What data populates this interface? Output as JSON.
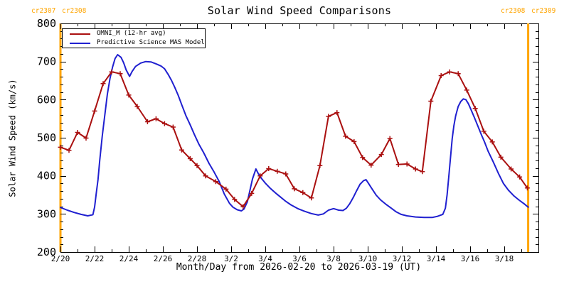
{
  "title": "Solar Wind Speed Comparisons",
  "colors": {
    "omni_red": "#aa1010",
    "model_blue": "#2020d0",
    "carrington_orange": "#ffa500",
    "axis": "#000000",
    "background": "#ffffff"
  },
  "carrington": {
    "boundaries": [
      {
        "day": 0.0,
        "left_label": "cr2307",
        "right_label": "cr2308"
      },
      {
        "day": 27.4,
        "left_label": "cr2308",
        "right_label": "cr2309"
      }
    ]
  },
  "legend": {
    "items": [
      {
        "label": "OMNI_M (12-hr avg)"
      },
      {
        "label": "Predictive Science MAS Model"
      }
    ]
  },
  "chart_data": {
    "type": "line",
    "title": "Solar Wind Speed Comparisons",
    "xlabel": "Month/Day from 2026-02-20 to 2026-03-19 (UT)",
    "ylabel": "Solar Wind Speed (km/s)",
    "x_unit": "days since 2026-02-20 00:00 UT",
    "x_range_days": [
      0,
      28
    ],
    "ylim": [
      200,
      800
    ],
    "y_ticks": [
      200,
      300,
      400,
      500,
      600,
      700,
      800
    ],
    "y_major_step": 100,
    "y_minor_step": 20,
    "x_major_step_days": 2,
    "x_minor_step_days": 1,
    "x_tick_days": [
      0,
      2,
      4,
      6,
      8,
      10,
      12,
      14,
      16,
      18,
      20,
      22,
      24,
      26
    ],
    "x_tick_labels": [
      "2/20",
      "2/22",
      "2/24",
      "2/26",
      "2/28",
      "3/2",
      "3/4",
      "3/6",
      "3/8",
      "3/10",
      "3/12",
      "3/14",
      "3/16",
      "3/18"
    ],
    "grid": false,
    "legend_position": "top-left",
    "series": [
      {
        "name": "OMNI_M (12-hr avg)",
        "color": "#aa1010",
        "marker": "plus",
        "points": [
          [
            0.0,
            475
          ],
          [
            0.5,
            467
          ],
          [
            1.0,
            514
          ],
          [
            1.5,
            499
          ],
          [
            2.0,
            570
          ],
          [
            2.5,
            642
          ],
          [
            3.0,
            673
          ],
          [
            3.5,
            668
          ],
          [
            4.0,
            612
          ],
          [
            4.5,
            582
          ],
          [
            5.1,
            542
          ],
          [
            5.6,
            550
          ],
          [
            6.1,
            537
          ],
          [
            6.6,
            528
          ],
          [
            7.1,
            468
          ],
          [
            7.6,
            445
          ],
          [
            8.0,
            427
          ],
          [
            8.5,
            400
          ],
          [
            9.1,
            385
          ],
          [
            9.7,
            365
          ],
          [
            10.2,
            338
          ],
          [
            10.7,
            319
          ],
          [
            11.2,
            354
          ],
          [
            11.7,
            400
          ],
          [
            12.2,
            419
          ],
          [
            12.7,
            412
          ],
          [
            13.2,
            405
          ],
          [
            13.7,
            366
          ],
          [
            14.2,
            356
          ],
          [
            14.7,
            342
          ],
          [
            15.2,
            427
          ],
          [
            15.7,
            556
          ],
          [
            16.2,
            566
          ],
          [
            16.7,
            504
          ],
          [
            17.2,
            490
          ],
          [
            17.7,
            448
          ],
          [
            18.2,
            428
          ],
          [
            18.8,
            456
          ],
          [
            19.3,
            498
          ],
          [
            19.8,
            430
          ],
          [
            20.3,
            431
          ],
          [
            20.8,
            418
          ],
          [
            21.2,
            411
          ],
          [
            21.7,
            596
          ],
          [
            22.3,
            663
          ],
          [
            22.8,
            673
          ],
          [
            23.3,
            668
          ],
          [
            23.8,
            625
          ],
          [
            24.3,
            577
          ],
          [
            24.8,
            517
          ],
          [
            25.3,
            489
          ],
          [
            25.8,
            449
          ],
          [
            26.4,
            418
          ],
          [
            26.9,
            397
          ],
          [
            27.35,
            368
          ]
        ]
      },
      {
        "name": "Predictive Science MAS Model",
        "color": "#2020d0",
        "marker": "none",
        "points": [
          [
            0.0,
            317
          ],
          [
            0.4,
            310
          ],
          [
            0.8,
            304
          ],
          [
            1.2,
            299
          ],
          [
            1.6,
            295
          ],
          [
            1.9,
            298
          ],
          [
            2.0,
            318
          ],
          [
            2.1,
            355
          ],
          [
            2.2,
            390
          ],
          [
            2.3,
            440
          ],
          [
            2.45,
            505
          ],
          [
            2.6,
            560
          ],
          [
            2.75,
            615
          ],
          [
            2.9,
            655
          ],
          [
            3.05,
            685
          ],
          [
            3.2,
            708
          ],
          [
            3.35,
            718
          ],
          [
            3.55,
            711
          ],
          [
            3.7,
            697
          ],
          [
            3.85,
            678
          ],
          [
            4.05,
            661
          ],
          [
            4.2,
            674
          ],
          [
            4.4,
            687
          ],
          [
            4.7,
            696
          ],
          [
            5.0,
            700
          ],
          [
            5.3,
            699
          ],
          [
            5.6,
            694
          ],
          [
            5.9,
            688
          ],
          [
            6.1,
            681
          ],
          [
            6.3,
            667
          ],
          [
            6.5,
            651
          ],
          [
            6.7,
            632
          ],
          [
            6.9,
            611
          ],
          [
            7.1,
            587
          ],
          [
            7.35,
            558
          ],
          [
            7.6,
            534
          ],
          [
            7.85,
            508
          ],
          [
            8.1,
            484
          ],
          [
            8.4,
            460
          ],
          [
            8.7,
            433
          ],
          [
            9.0,
            410
          ],
          [
            9.3,
            385
          ],
          [
            9.6,
            352
          ],
          [
            9.9,
            328
          ],
          [
            10.1,
            318
          ],
          [
            10.35,
            311
          ],
          [
            10.6,
            308
          ],
          [
            10.75,
            313
          ],
          [
            10.95,
            332
          ],
          [
            11.1,
            362
          ],
          [
            11.25,
            392
          ],
          [
            11.45,
            418
          ],
          [
            11.6,
            405
          ],
          [
            11.8,
            392
          ],
          [
            12.0,
            381
          ],
          [
            12.3,
            367
          ],
          [
            12.6,
            355
          ],
          [
            12.9,
            344
          ],
          [
            13.2,
            333
          ],
          [
            13.5,
            324
          ],
          [
            13.9,
            314
          ],
          [
            14.3,
            307
          ],
          [
            14.7,
            301
          ],
          [
            15.1,
            297
          ],
          [
            15.4,
            300
          ],
          [
            15.7,
            310
          ],
          [
            16.0,
            314
          ],
          [
            16.3,
            310
          ],
          [
            16.55,
            309
          ],
          [
            16.75,
            315
          ],
          [
            16.95,
            327
          ],
          [
            17.15,
            343
          ],
          [
            17.35,
            361
          ],
          [
            17.55,
            378
          ],
          [
            17.75,
            387
          ],
          [
            17.9,
            390
          ],
          [
            18.05,
            380
          ],
          [
            18.25,
            366
          ],
          [
            18.5,
            349
          ],
          [
            18.75,
            337
          ],
          [
            19.05,
            326
          ],
          [
            19.35,
            316
          ],
          [
            19.65,
            306
          ],
          [
            19.95,
            299
          ],
          [
            20.3,
            295
          ],
          [
            20.8,
            292
          ],
          [
            21.3,
            291
          ],
          [
            21.8,
            291
          ],
          [
            22.1,
            294
          ],
          [
            22.4,
            299
          ],
          [
            22.55,
            315
          ],
          [
            22.65,
            350
          ],
          [
            22.75,
            398
          ],
          [
            22.85,
            448
          ],
          [
            22.95,
            498
          ],
          [
            23.05,
            532
          ],
          [
            23.15,
            557
          ],
          [
            23.3,
            582
          ],
          [
            23.45,
            595
          ],
          [
            23.6,
            602
          ],
          [
            23.75,
            600
          ],
          [
            23.9,
            589
          ],
          [
            24.05,
            574
          ],
          [
            24.25,
            553
          ],
          [
            24.45,
            531
          ],
          [
            24.65,
            509
          ],
          [
            24.85,
            488
          ],
          [
            25.05,
            465
          ],
          [
            25.35,
            437
          ],
          [
            25.65,
            407
          ],
          [
            25.95,
            380
          ],
          [
            26.25,
            362
          ],
          [
            26.55,
            348
          ],
          [
            26.85,
            337
          ],
          [
            27.15,
            327
          ],
          [
            27.4,
            318
          ]
        ]
      }
    ]
  }
}
